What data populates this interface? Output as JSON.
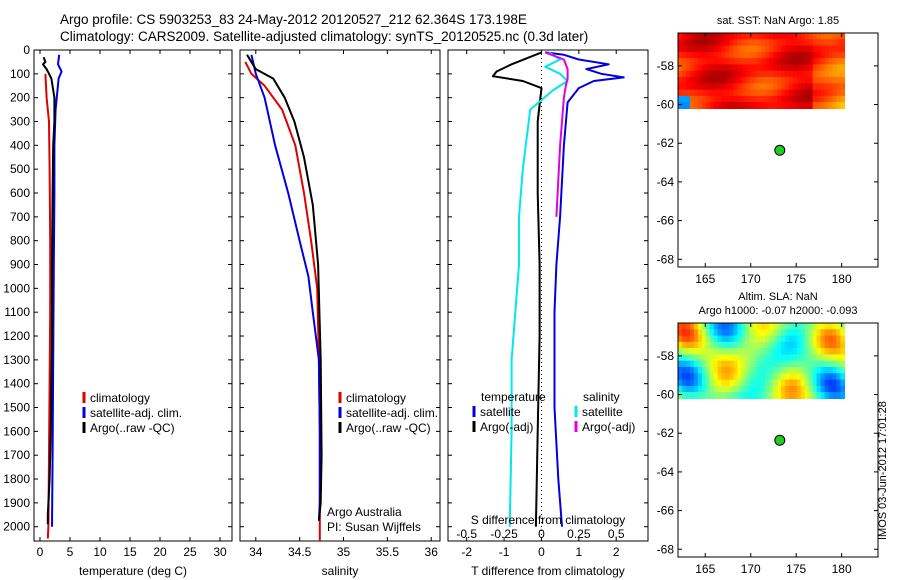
{
  "header": {
    "line1": "Argo profile: CS 5903253_83 24-May-2012 20120527_212 62.364S 173.198E",
    "line2": "Climatology: CARS2009. Satellite-adjusted climatology: synTS_20120525.nc (0.3d later)"
  },
  "footer_stamp": "IMOS 03-Jun-2012 17:01:28",
  "chart_data": [
    {
      "type": "line",
      "name": "temperature-profile",
      "xlabel": "temperature (deg C)",
      "ylabel": "",
      "xlim": [
        -1,
        32
      ],
      "ylim": [
        2060,
        0
      ],
      "xticks": [
        0,
        5,
        10,
        15,
        20,
        25,
        30
      ],
      "yticks": [
        0,
        100,
        200,
        300,
        400,
        500,
        600,
        700,
        800,
        900,
        1000,
        1100,
        1200,
        1300,
        1400,
        1500,
        1600,
        1700,
        1800,
        1900,
        2000
      ],
      "legend": [
        {
          "label": "climatology",
          "color": "#e00000"
        },
        {
          "label": "satellite-adj. clim.",
          "color": "#0000e0"
        },
        {
          "label": "Argo(..raw -QC)",
          "color": "#000000"
        }
      ],
      "series": [
        {
          "name": "climatology",
          "color": "#e00000",
          "points": [
            [
              0.9,
              100
            ],
            [
              1.1,
              200
            ],
            [
              1.5,
              300
            ],
            [
              1.6,
              500
            ],
            [
              1.7,
              800
            ],
            [
              1.7,
              1100
            ],
            [
              1.6,
              1400
            ],
            [
              1.5,
              1700
            ],
            [
              1.4,
              2000
            ],
            [
              1.3,
              2050
            ]
          ]
        },
        {
          "name": "satellite-adj. clim.",
          "color": "#0000e0",
          "points": [
            [
              3.2,
              20
            ],
            [
              3.0,
              60
            ],
            [
              3.6,
              90
            ],
            [
              3.1,
              120
            ],
            [
              2.6,
              250
            ],
            [
              2.4,
              400
            ],
            [
              2.4,
              600
            ],
            [
              2.3,
              900
            ],
            [
              2.2,
              1300
            ],
            [
              2.1,
              1700
            ],
            [
              2.0,
              2000
            ]
          ]
        },
        {
          "name": "Argo(..raw -QC)",
          "color": "#000000",
          "points": [
            [
              0.6,
              30
            ],
            [
              0.9,
              50
            ],
            [
              0.5,
              60
            ],
            [
              1.1,
              80
            ],
            [
              1.9,
              120
            ],
            [
              2.4,
              200
            ],
            [
              2.4,
              300
            ],
            [
              2.2,
              400
            ],
            [
              2.1,
              600
            ],
            [
              2.0,
              900
            ],
            [
              2.0,
              1200
            ],
            [
              1.8,
              1600
            ],
            [
              1.6,
              1800
            ],
            [
              1.3,
              1950
            ],
            [
              1.3,
              1990
            ]
          ]
        }
      ]
    },
    {
      "type": "line",
      "name": "salinity-profile",
      "xlabel": "salinity",
      "ylabel": "",
      "xlim": [
        33.82,
        36.1
      ],
      "ylim": [
        2060,
        0
      ],
      "xticks": [
        34,
        34.5,
        35,
        35.5,
        36
      ],
      "legend": [
        {
          "label": "climatology",
          "color": "#e00000"
        },
        {
          "label": "satellite-adj. clim.",
          "color": "#0000e0"
        },
        {
          "label": "Argo(..raw -QC)",
          "color": "#000000"
        }
      ],
      "annotation": [
        "Argo Australia",
        "PI: Susan Wijffels"
      ],
      "series": [
        {
          "name": "climatology",
          "color": "#e00000",
          "points": [
            [
              33.88,
              50
            ],
            [
              33.95,
              100
            ],
            [
              34.1,
              150
            ],
            [
              34.3,
              250
            ],
            [
              34.45,
              400
            ],
            [
              34.55,
              600
            ],
            [
              34.63,
              800
            ],
            [
              34.7,
              1000
            ],
            [
              34.72,
              1300
            ],
            [
              34.73,
              1600
            ],
            [
              34.73,
              2060
            ]
          ]
        },
        {
          "name": "satellite-adj. clim.",
          "color": "#0000e0",
          "points": [
            [
              33.95,
              20
            ],
            [
              34.0,
              100
            ],
            [
              34.1,
              200
            ],
            [
              34.22,
              400
            ],
            [
              34.37,
              600
            ],
            [
              34.5,
              800
            ],
            [
              34.6,
              950
            ],
            [
              34.65,
              1100
            ],
            [
              34.72,
              1300
            ],
            [
              34.73,
              1600
            ],
            [
              34.73,
              1900
            ],
            [
              34.72,
              1975
            ]
          ]
        },
        {
          "name": "Argo(..raw -QC)",
          "color": "#000000",
          "points": [
            [
              33.9,
              20
            ],
            [
              34.0,
              80
            ],
            [
              34.2,
              120
            ],
            [
              34.33,
              200
            ],
            [
              34.44,
              300
            ],
            [
              34.55,
              450
            ],
            [
              34.65,
              650
            ],
            [
              34.71,
              900
            ],
            [
              34.74,
              1300
            ],
            [
              34.75,
              1700
            ],
            [
              34.74,
              1900
            ],
            [
              34.72,
              1975
            ]
          ]
        }
      ]
    },
    {
      "type": "line",
      "name": "difference-profile",
      "xlabel_bottom": "T difference from climatology",
      "xlabel_top": "S difference from climatology",
      "xlim": [
        -2.5,
        2.85
      ],
      "ylim": [
        2060,
        0
      ],
      "xticks": [
        -2,
        -1,
        0,
        1,
        2
      ],
      "top_ticks": [
        "-0.5",
        "-0.25",
        "0",
        "0.25",
        "0.5"
      ],
      "legend_left": {
        "header": "temperature",
        "items": [
          {
            "label": "satellite",
            "color": "#0000e0"
          },
          {
            "label": "Argo(-adj)",
            "color": "#000000"
          }
        ]
      },
      "legend_right": {
        "header": "salinity",
        "items": [
          {
            "label": "satellite",
            "color": "#00e8e8"
          },
          {
            "label": "Argo(-adj)",
            "color": "#e000e0"
          }
        ]
      },
      "series": [
        {
          "name": "T satellite",
          "color": "#0000e0",
          "points": [
            [
              0.1,
              10
            ],
            [
              0.6,
              20
            ],
            [
              1.0,
              40
            ],
            [
              1.8,
              60
            ],
            [
              1.2,
              80
            ],
            [
              1.6,
              100
            ],
            [
              2.2,
              115
            ],
            [
              1.4,
              130
            ],
            [
              1.0,
              160
            ],
            [
              0.7,
              220
            ],
            [
              0.6,
              400
            ],
            [
              0.5,
              700
            ],
            [
              0.4,
              900
            ],
            [
              0.35,
              1100
            ],
            [
              0.35,
              1500
            ],
            [
              0.45,
              1800
            ],
            [
              0.55,
              2000
            ]
          ]
        },
        {
          "name": "T Argo(-adj)",
          "color": "#000000",
          "points": [
            [
              0.0,
              10
            ],
            [
              -0.8,
              60
            ],
            [
              -1.2,
              90
            ],
            [
              -1.3,
              110
            ],
            [
              -0.5,
              130
            ],
            [
              0.0,
              160
            ],
            [
              -0.1,
              300
            ],
            [
              -0.1,
              600
            ],
            [
              -0.05,
              900
            ],
            [
              -0.05,
              1200
            ],
            [
              -0.1,
              1600
            ],
            [
              -0.15,
              2000
            ]
          ]
        },
        {
          "name": "S satellite",
          "color": "#00e8e8",
          "points": [
            [
              0.2,
              10
            ],
            [
              0.5,
              40
            ],
            [
              0.1,
              70
            ],
            [
              0.5,
              100
            ],
            [
              0.7,
              130
            ],
            [
              0.3,
              170
            ],
            [
              -0.3,
              250
            ],
            [
              -0.5,
              500
            ],
            [
              -0.6,
              700
            ],
            [
              -0.6,
              900
            ],
            [
              -0.7,
              1100
            ],
            [
              -0.8,
              1300
            ],
            [
              -0.8,
              1600
            ],
            [
              -0.85,
              2000
            ]
          ]
        },
        {
          "name": "S Argo(-adj)",
          "color": "#e000e0",
          "points": [
            [
              0.1,
              10
            ],
            [
              0.6,
              40
            ],
            [
              0.7,
              80
            ],
            [
              0.7,
              120
            ],
            [
              0.65,
              150
            ],
            [
              0.6,
              200
            ],
            [
              0.5,
              400
            ],
            [
              0.4,
              700
            ]
          ]
        }
      ]
    },
    {
      "type": "heatmap",
      "name": "sst-map",
      "title": "sat. SST: NaN Argo: 1.85",
      "xlim": [
        162,
        184
      ],
      "ylim": [
        -68.4,
        -56.3
      ],
      "xticks": [
        165,
        170,
        175,
        180
      ],
      "yticks": [
        -58,
        -60,
        -62,
        -64,
        -66,
        -68
      ],
      "argo_position": {
        "lon": 173.198,
        "lat": -62.364
      },
      "colormap": "jet"
    },
    {
      "type": "heatmap",
      "name": "sla-map",
      "title": "Altim. SLA: NaN",
      "subtitle": "Argo h1000: -0.07 h2000: -0.093",
      "xlim": [
        162,
        184
      ],
      "ylim": [
        -68.4,
        -56.3
      ],
      "xticks": [
        165,
        170,
        175,
        180
      ],
      "yticks": [
        -58,
        -60,
        -62,
        -64,
        -66,
        -68
      ],
      "argo_position": {
        "lon": 173.198,
        "lat": -62.364
      },
      "colormap": "jet"
    }
  ]
}
